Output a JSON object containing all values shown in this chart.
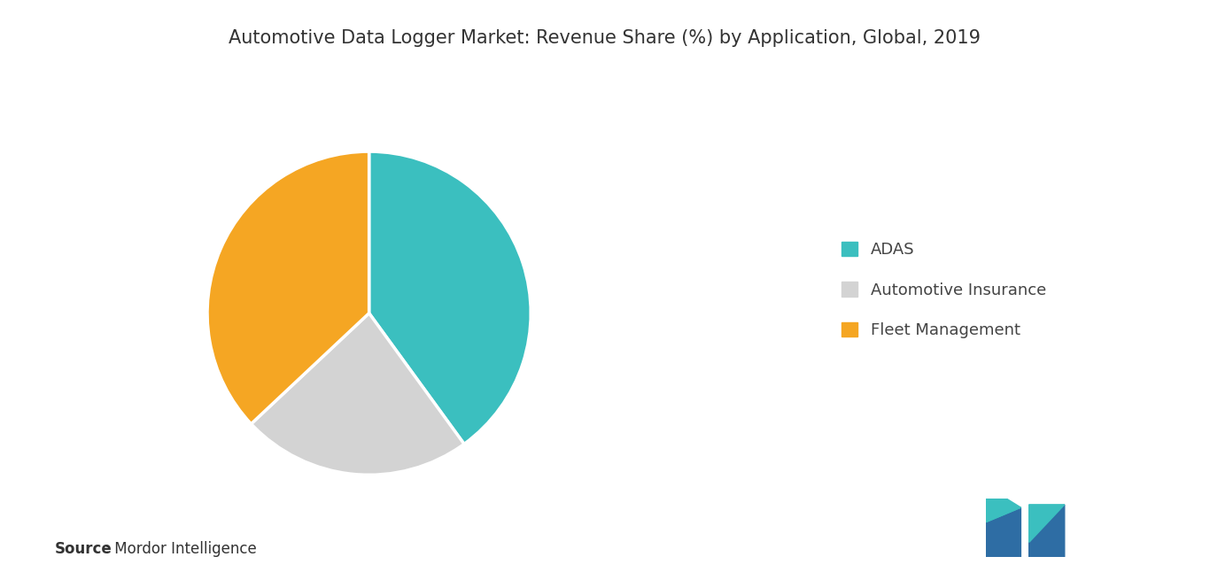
{
  "title": "Automotive Data Logger Market: Revenue Share (%) by Application, Global, 2019",
  "slices": [
    {
      "label": "ADAS",
      "value": 40,
      "color": "#3bbfbf"
    },
    {
      "label": "Automotive Insurance",
      "value": 23,
      "color": "#d3d3d3"
    },
    {
      "label": "Fleet Management",
      "value": 37,
      "color": "#f5a623"
    }
  ],
  "source_bold": "Source",
  "source_text": " : Mordor Intelligence",
  "background_color": "#ffffff",
  "title_fontsize": 15,
  "legend_fontsize": 13,
  "source_fontsize": 12,
  "startangle": 90
}
